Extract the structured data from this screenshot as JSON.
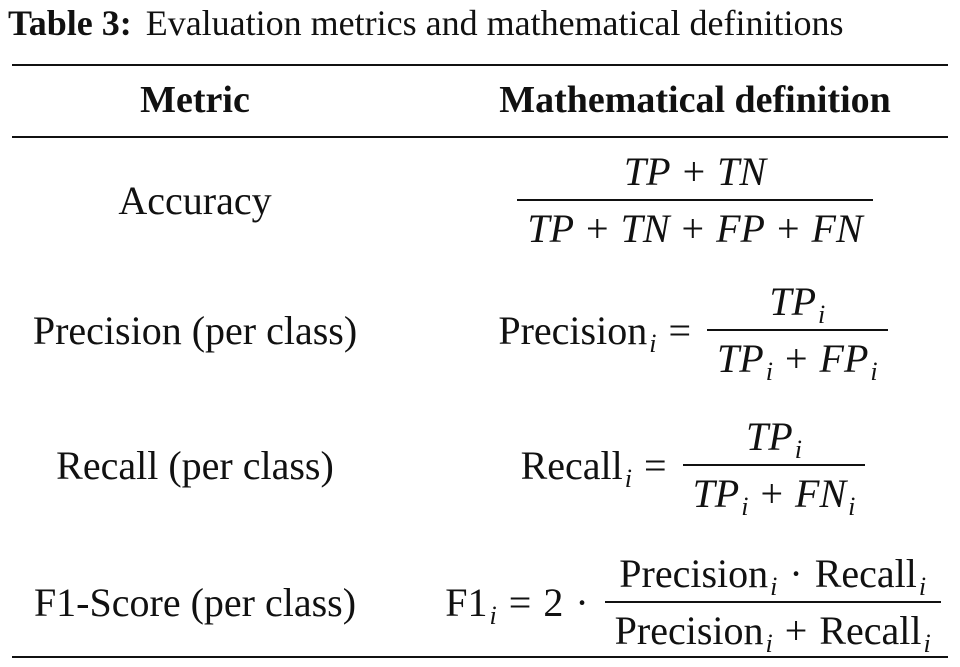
{
  "caption": {
    "label": "Table 3:",
    "text": "Evaluation metrics and mathematical definitions"
  },
  "table": {
    "header": [
      "Metric",
      "Mathematical definition"
    ],
    "rows": [
      {
        "metric": "Accuracy",
        "definition": {
          "lhs": [],
          "numerator": [
            {
              "var": "TP"
            },
            {
              "op": "+"
            },
            {
              "var": "TN"
            }
          ],
          "denominator": [
            {
              "var": "TP"
            },
            {
              "op": "+"
            },
            {
              "var": "TN"
            },
            {
              "op": "+"
            },
            {
              "var": "FP"
            },
            {
              "op": "+"
            },
            {
              "var": "FN"
            }
          ]
        }
      },
      {
        "metric": "Precision (per class)",
        "definition": {
          "lhs": [
            {
              "text": "Precision",
              "sub": "i"
            },
            {
              "op": "="
            }
          ],
          "numerator": [
            {
              "var": "TP",
              "sub": "i"
            }
          ],
          "denominator": [
            {
              "var": "TP",
              "sub": "i"
            },
            {
              "op": "+"
            },
            {
              "var": "FP",
              "sub": "i"
            }
          ]
        }
      },
      {
        "metric": "Recall (per class)",
        "definition": {
          "lhs": [
            {
              "text": "Recall",
              "sub": "i"
            },
            {
              "op": "="
            }
          ],
          "numerator": [
            {
              "var": "TP",
              "sub": "i"
            }
          ],
          "denominator": [
            {
              "var": "TP",
              "sub": "i"
            },
            {
              "op": "+"
            },
            {
              "var": "FN",
              "sub": "i"
            }
          ]
        }
      },
      {
        "metric": "F1-Score (per class)",
        "definition": {
          "lhs": [
            {
              "text": "F1",
              "sub": "i"
            },
            {
              "op": "="
            },
            {
              "text": "2"
            },
            {
              "op": "·"
            }
          ],
          "numerator": [
            {
              "text": "Precision",
              "sub": "i"
            },
            {
              "op": "·"
            },
            {
              "text": "Recall",
              "sub": "i"
            }
          ],
          "denominator": [
            {
              "text": "Precision",
              "sub": "i"
            },
            {
              "op": "+"
            },
            {
              "text": "Recall",
              "sub": "i"
            }
          ]
        }
      }
    ]
  }
}
